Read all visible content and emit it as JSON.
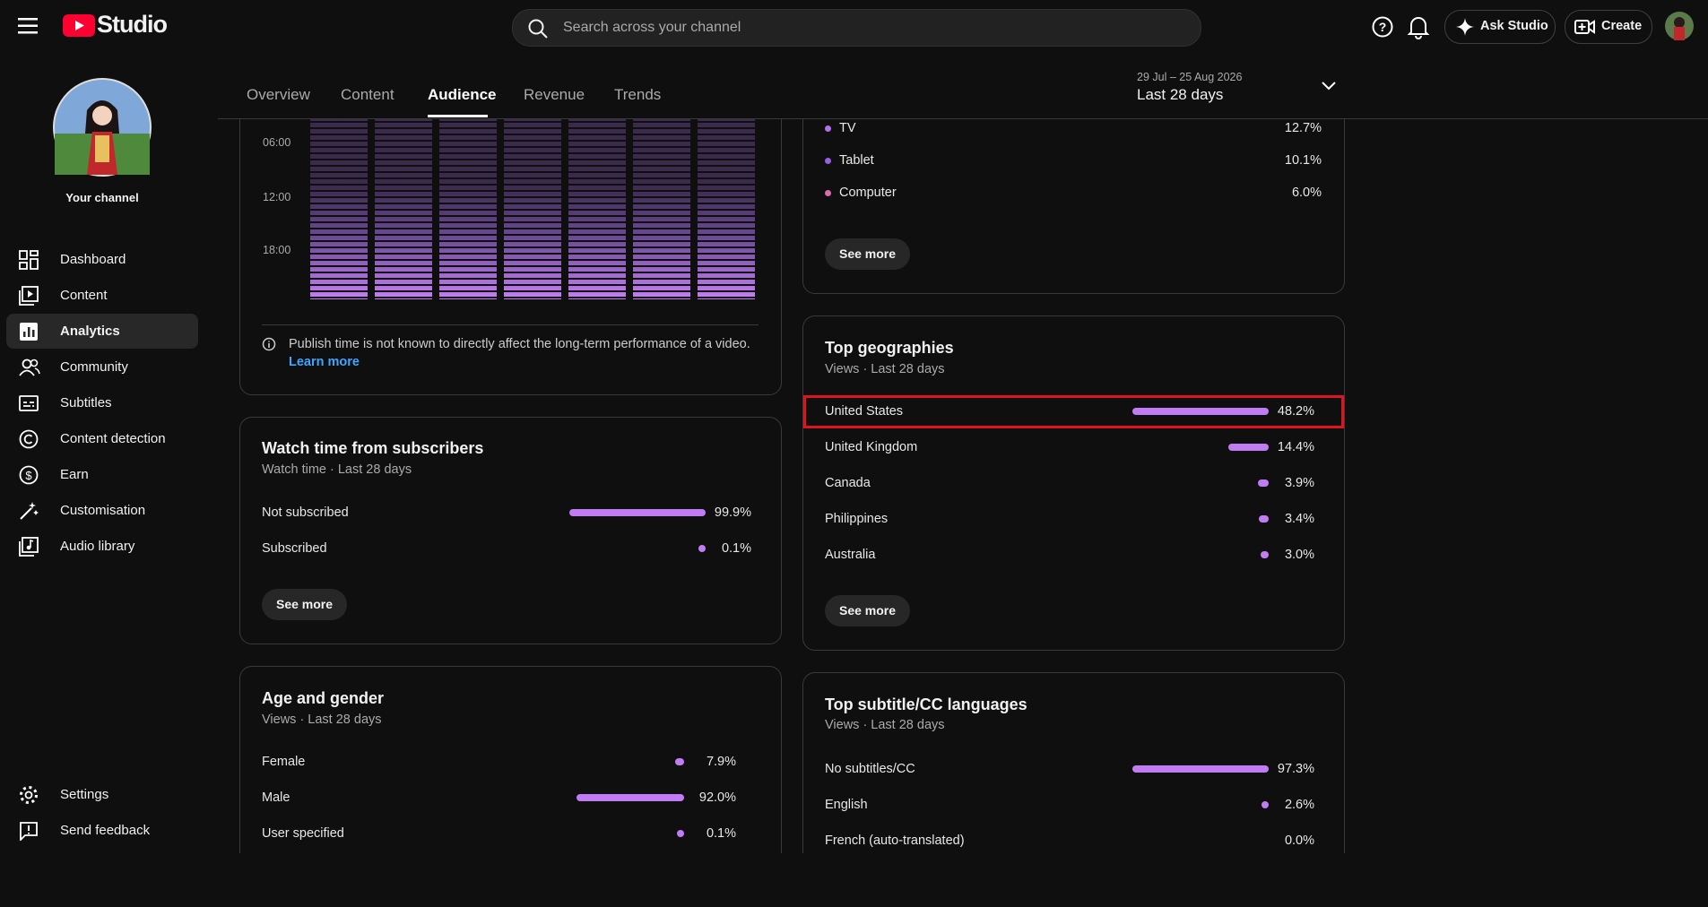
{
  "header": {
    "logo": "Studio",
    "search_placeholder": "Search across your channel",
    "ask_studio": "Ask Studio",
    "create": "Create"
  },
  "sidebar": {
    "channel": "Your channel",
    "nav": [
      "Dashboard",
      "Content",
      "Analytics",
      "Community",
      "Subtitles",
      "Content detection",
      "Earn",
      "Customisation",
      "Audio library"
    ],
    "footer": [
      "Settings",
      "Send feedback"
    ]
  },
  "tabs": [
    "Overview",
    "Content",
    "Audience",
    "Revenue",
    "Trends"
  ],
  "date_range": {
    "dates": "29 Jul – 25 Aug 2026",
    "label": "Last 28 days"
  },
  "publish_time": {
    "hours": [
      "06:00",
      "12:00",
      "18:00"
    ],
    "note": "Publish time is not known to directly affect the long-term performance of a video.",
    "link": "Learn more"
  },
  "devices": {
    "rows": [
      {
        "name": "TV",
        "share": {
          "value": 12.7,
          "label": "12.7%"
        },
        "color": "#b46ef0"
      },
      {
        "name": "Tablet",
        "share": {
          "value": 10.1,
          "label": "10.1%"
        },
        "color": "#9b5de5"
      },
      {
        "name": "Computer",
        "share": {
          "value": 6.0,
          "label": "6.0%"
        },
        "color": "#e06ab0"
      }
    ],
    "button": "See more"
  },
  "watch_time_subscribers": {
    "title": "Watch time from subscribers",
    "subtitle": "Watch time · Last 28 days",
    "rows": [
      {
        "name": "Not subscribed",
        "share": {
          "value": 99.9,
          "label": "99.9%"
        }
      },
      {
        "name": "Subscribed",
        "share": {
          "value": 0.1,
          "label": "0.1%"
        }
      }
    ],
    "button": "See more"
  },
  "age_gender": {
    "title": "Age and gender",
    "subtitle": "Views · Last 28 days",
    "rows": [
      {
        "name": "Female",
        "share": {
          "value": 7.9,
          "label": "7.9%"
        }
      },
      {
        "name": "Male",
        "share": {
          "value": 92.0,
          "label": "92.0%"
        }
      },
      {
        "name": "User specified",
        "share": {
          "value": 0.1,
          "label": "0.1%"
        }
      }
    ]
  },
  "top_geographies": {
    "title": "Top geographies",
    "subtitle": "Views · Last 28 days",
    "rows": [
      {
        "name": "United States",
        "share": {
          "value": 48.2,
          "label": "48.2%"
        }
      },
      {
        "name": "United Kingdom",
        "share": {
          "value": 14.4,
          "label": "14.4%"
        }
      },
      {
        "name": "Canada",
        "share": {
          "value": 3.9,
          "label": "3.9%"
        }
      },
      {
        "name": "Philippines",
        "share": {
          "value": 3.4,
          "label": "3.4%"
        }
      },
      {
        "name": "Australia",
        "share": {
          "value": 3.0,
          "label": "3.0%"
        }
      }
    ],
    "button": "See more"
  },
  "subtitle_languages": {
    "title": "Top subtitle/CC languages",
    "subtitle": "Views · Last 28 days",
    "rows": [
      {
        "name": "No subtitles/CC",
        "share": {
          "value": 97.3,
          "label": "97.3%"
        }
      },
      {
        "name": "English",
        "share": {
          "value": 2.6,
          "label": "2.6%"
        }
      },
      {
        "name": "French (auto-translated)",
        "share": {
          "value": 0.0,
          "label": "0.0%"
        }
      }
    ]
  }
}
